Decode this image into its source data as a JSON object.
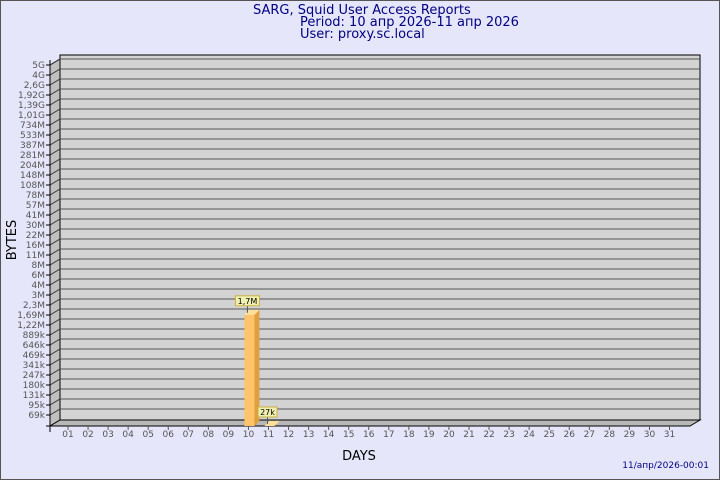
{
  "header": {
    "title": "SARG, Squid User Access Reports",
    "period": "Period: 10 апр 2026-11 апр 2026",
    "user": "User: proxy.sc.local"
  },
  "footer": {
    "timestamp": "11/апр/2026-00:01"
  },
  "colors": {
    "background": "#e6e6fa",
    "plot": "#d3d3d3",
    "bar": "#ffc46a",
    "bar_side": "#e0a040",
    "text": "#000080"
  },
  "chart_data": {
    "type": "bar",
    "xlabel": "DAYS",
    "ylabel": "BYTES",
    "yscale": "log",
    "grid": true,
    "y_ticks": [
      {
        "label": "5G",
        "value": 5000000000
      },
      {
        "label": "4G",
        "value": 4000000000
      },
      {
        "label": "2,6G",
        "value": 2600000000
      },
      {
        "label": "1,92G",
        "value": 1920000000
      },
      {
        "label": "1,39G",
        "value": 1390000000
      },
      {
        "label": "1,01G",
        "value": 1010000000
      },
      {
        "label": "734M",
        "value": 734000000
      },
      {
        "label": "533M",
        "value": 533000000
      },
      {
        "label": "387M",
        "value": 387000000
      },
      {
        "label": "281M",
        "value": 281000000
      },
      {
        "label": "204M",
        "value": 204000000
      },
      {
        "label": "148M",
        "value": 148000000
      },
      {
        "label": "108M",
        "value": 108000000
      },
      {
        "label": "78M",
        "value": 78000000
      },
      {
        "label": "57M",
        "value": 57000000
      },
      {
        "label": "41M",
        "value": 41000000
      },
      {
        "label": "30M",
        "value": 30000000
      },
      {
        "label": "22M",
        "value": 22000000
      },
      {
        "label": "16M",
        "value": 16000000
      },
      {
        "label": "11M",
        "value": 11000000
      },
      {
        "label": "8M",
        "value": 8000000
      },
      {
        "label": "6M",
        "value": 6000000
      },
      {
        "label": "4M",
        "value": 4000000
      },
      {
        "label": "3M",
        "value": 3000000
      },
      {
        "label": "2,3M",
        "value": 2300000
      },
      {
        "label": "1,69M",
        "value": 1690000
      },
      {
        "label": "1,22M",
        "value": 1220000
      },
      {
        "label": "889k",
        "value": 889000
      },
      {
        "label": "646k",
        "value": 646000
      },
      {
        "label": "469k",
        "value": 469000
      },
      {
        "label": "341k",
        "value": 341000
      },
      {
        "label": "247k",
        "value": 247000
      },
      {
        "label": "180k",
        "value": 180000
      },
      {
        "label": "131k",
        "value": 131000
      },
      {
        "label": "95k",
        "value": 95000
      },
      {
        "label": "69k",
        "value": 69000
      }
    ],
    "categories": [
      "01",
      "02",
      "03",
      "04",
      "05",
      "06",
      "07",
      "08",
      "09",
      "10",
      "11",
      "12",
      "13",
      "14",
      "15",
      "16",
      "17",
      "18",
      "19",
      "20",
      "21",
      "22",
      "23",
      "24",
      "25",
      "26",
      "27",
      "28",
      "29",
      "30",
      "31"
    ],
    "bars": [
      {
        "day": "10",
        "value": 1700000,
        "label": "1,7M"
      },
      {
        "day": "11",
        "value": 27000,
        "label": "27k"
      }
    ]
  }
}
